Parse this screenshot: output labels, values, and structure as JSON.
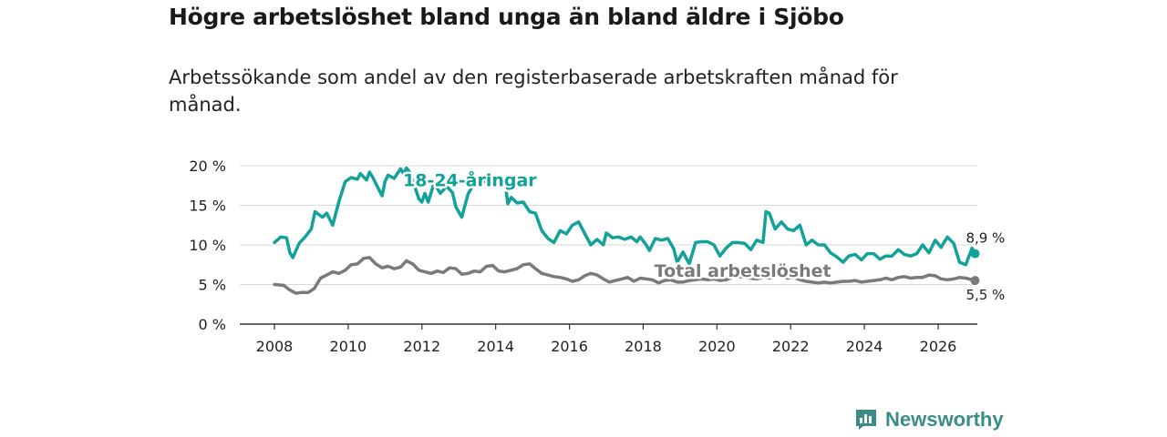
{
  "title": "Högre arbetslöshet bland unga än bland äldre i Sjöbo",
  "subtitle": "Arbetssökande som andel av den registerbaserade arbetskraften månad för månad.",
  "brand": {
    "name": "Newsworthy",
    "icon": "newsworthy-logo-icon",
    "color": "#3a8d86"
  },
  "chart_data": {
    "type": "line",
    "title": "Högre arbetslöshet bland unga än bland äldre i Sjöbo",
    "xlabel": "",
    "ylabel": "",
    "xlim": [
      2007.5,
      2027.0
    ],
    "ylim": [
      0,
      20
    ],
    "x_ticks": [
      {
        "value": 2008,
        "label": "2008"
      },
      {
        "value": 2010,
        "label": "2010"
      },
      {
        "value": 2012,
        "label": "2012"
      },
      {
        "value": 2014,
        "label": "2014"
      },
      {
        "value": 2016,
        "label": "2016"
      },
      {
        "value": 2018,
        "label": "2018"
      },
      {
        "value": 2020,
        "label": "2020"
      },
      {
        "value": 2022,
        "label": "2022"
      },
      {
        "value": 2024,
        "label": "2024"
      },
      {
        "value": 2026,
        "label": "2026"
      }
    ],
    "y_ticks": [
      {
        "value": 0,
        "label": "0 %"
      },
      {
        "value": 5,
        "label": "5 %"
      },
      {
        "value": 10,
        "label": "10 %"
      },
      {
        "value": 15,
        "label": "15 %"
      },
      {
        "value": 20,
        "label": "20 %"
      }
    ],
    "grid": true,
    "series": [
      {
        "name": "18-24-åringar",
        "color": "#12a29a",
        "end_label": "8,9 %",
        "label_anchor": [
          2013.3,
          17.4
        ],
        "points": [
          [
            2008.0,
            10.3
          ],
          [
            2008.17,
            11.0
          ],
          [
            2008.33,
            10.9
          ],
          [
            2008.42,
            9.0
          ],
          [
            2008.5,
            8.4
          ],
          [
            2008.67,
            10.2
          ],
          [
            2008.83,
            11.0
          ],
          [
            2009.0,
            12.0
          ],
          [
            2009.1,
            14.2
          ],
          [
            2009.3,
            13.5
          ],
          [
            2009.42,
            14.0
          ],
          [
            2009.58,
            12.5
          ],
          [
            2009.75,
            15.5
          ],
          [
            2009.92,
            18.0
          ],
          [
            2010.08,
            18.5
          ],
          [
            2010.25,
            18.3
          ],
          [
            2010.33,
            19.0
          ],
          [
            2010.5,
            18.2
          ],
          [
            2010.58,
            19.2
          ],
          [
            2010.67,
            18.5
          ],
          [
            2010.83,
            17.0
          ],
          [
            2010.92,
            16.2
          ],
          [
            2011.0,
            18.0
          ],
          [
            2011.08,
            18.8
          ],
          [
            2011.25,
            18.4
          ],
          [
            2011.42,
            19.6
          ],
          [
            2011.5,
            19.0
          ],
          [
            2011.58,
            19.7
          ],
          [
            2011.67,
            19.2
          ],
          [
            2011.83,
            17.0
          ],
          [
            2011.92,
            15.8
          ],
          [
            2012.0,
            15.4
          ],
          [
            2012.08,
            16.5
          ],
          [
            2012.17,
            15.4
          ],
          [
            2012.33,
            17.8
          ],
          [
            2012.5,
            16.5
          ],
          [
            2012.67,
            17.4
          ],
          [
            2012.83,
            16.6
          ],
          [
            2012.92,
            14.8
          ],
          [
            2013.08,
            13.5
          ],
          [
            2013.25,
            16.4
          ],
          [
            2013.42,
            17.8
          ],
          [
            2013.58,
            18.0
          ],
          [
            2013.75,
            18.0
          ],
          [
            2013.92,
            17.6
          ],
          [
            2014.08,
            17.9
          ],
          [
            2014.25,
            18.1
          ],
          [
            2014.33,
            15.2
          ],
          [
            2014.42,
            16.0
          ],
          [
            2014.58,
            15.3
          ],
          [
            2014.75,
            15.4
          ],
          [
            2014.92,
            14.2
          ],
          [
            2015.08,
            14.0
          ],
          [
            2015.25,
            11.8
          ],
          [
            2015.42,
            10.8
          ],
          [
            2015.58,
            10.3
          ],
          [
            2015.75,
            11.8
          ],
          [
            2015.92,
            11.4
          ],
          [
            2016.08,
            12.5
          ],
          [
            2016.25,
            12.9
          ],
          [
            2016.42,
            11.4
          ],
          [
            2016.58,
            10.0
          ],
          [
            2016.75,
            10.7
          ],
          [
            2016.92,
            10.0
          ],
          [
            2017.0,
            11.5
          ],
          [
            2017.17,
            10.9
          ],
          [
            2017.33,
            11.0
          ],
          [
            2017.5,
            10.7
          ],
          [
            2017.67,
            11.0
          ],
          [
            2017.83,
            10.4
          ],
          [
            2017.92,
            11.0
          ],
          [
            2018.08,
            10.0
          ],
          [
            2018.17,
            9.3
          ],
          [
            2018.33,
            10.8
          ],
          [
            2018.5,
            10.6
          ],
          [
            2018.67,
            10.8
          ],
          [
            2018.83,
            9.5
          ],
          [
            2018.92,
            7.8
          ],
          [
            2019.08,
            9.1
          ],
          [
            2019.25,
            7.6
          ],
          [
            2019.42,
            10.3
          ],
          [
            2019.58,
            10.4
          ],
          [
            2019.75,
            10.4
          ],
          [
            2019.92,
            10.0
          ],
          [
            2020.08,
            8.6
          ],
          [
            2020.25,
            9.6
          ],
          [
            2020.42,
            10.3
          ],
          [
            2020.58,
            10.3
          ],
          [
            2020.75,
            10.2
          ],
          [
            2020.92,
            9.4
          ],
          [
            2021.08,
            10.6
          ],
          [
            2021.25,
            10.3
          ],
          [
            2021.33,
            14.2
          ],
          [
            2021.42,
            14.0
          ],
          [
            2021.58,
            12.0
          ],
          [
            2021.75,
            12.9
          ],
          [
            2021.92,
            12.0
          ],
          [
            2022.08,
            11.8
          ],
          [
            2022.25,
            12.5
          ],
          [
            2022.42,
            10.0
          ],
          [
            2022.58,
            10.6
          ],
          [
            2022.75,
            10.0
          ],
          [
            2022.92,
            10.0
          ],
          [
            2023.08,
            9.0
          ],
          [
            2023.25,
            8.5
          ],
          [
            2023.42,
            7.8
          ],
          [
            2023.58,
            8.6
          ],
          [
            2023.75,
            8.8
          ],
          [
            2023.92,
            8.1
          ],
          [
            2024.08,
            8.9
          ],
          [
            2024.25,
            8.9
          ],
          [
            2024.42,
            8.2
          ],
          [
            2024.58,
            8.6
          ],
          [
            2024.75,
            8.6
          ],
          [
            2024.92,
            9.4
          ],
          [
            2025.08,
            8.8
          ],
          [
            2025.25,
            8.6
          ],
          [
            2025.42,
            8.9
          ],
          [
            2025.58,
            10.0
          ],
          [
            2025.75,
            9.0
          ],
          [
            2025.92,
            10.6
          ],
          [
            2026.08,
            9.7
          ],
          [
            2026.25,
            11.0
          ],
          [
            2026.42,
            10.2
          ],
          [
            2026.58,
            7.8
          ],
          [
            2026.75,
            7.5
          ],
          [
            2026.92,
            9.6
          ],
          [
            2027.0,
            8.9
          ]
        ]
      },
      {
        "name": "Total arbetslöshet",
        "color": "#7a7a7a",
        "end_label": "5,5 %",
        "label_anchor": [
          2020.7,
          6.0
        ],
        "points": [
          [
            2008.0,
            5.0
          ],
          [
            2008.25,
            4.9
          ],
          [
            2008.42,
            4.3
          ],
          [
            2008.58,
            3.9
          ],
          [
            2008.75,
            4.0
          ],
          [
            2008.92,
            4.0
          ],
          [
            2009.08,
            4.5
          ],
          [
            2009.25,
            5.8
          ],
          [
            2009.42,
            6.2
          ],
          [
            2009.58,
            6.6
          ],
          [
            2009.75,
            6.4
          ],
          [
            2009.92,
            6.8
          ],
          [
            2010.08,
            7.5
          ],
          [
            2010.25,
            7.6
          ],
          [
            2010.42,
            8.3
          ],
          [
            2010.58,
            8.4
          ],
          [
            2010.75,
            7.6
          ],
          [
            2010.92,
            7.1
          ],
          [
            2011.08,
            7.3
          ],
          [
            2011.25,
            7.0
          ],
          [
            2011.42,
            7.2
          ],
          [
            2011.58,
            8.0
          ],
          [
            2011.75,
            7.6
          ],
          [
            2011.92,
            6.8
          ],
          [
            2012.08,
            6.6
          ],
          [
            2012.25,
            6.4
          ],
          [
            2012.42,
            6.7
          ],
          [
            2012.58,
            6.5
          ],
          [
            2012.75,
            7.1
          ],
          [
            2012.92,
            7.0
          ],
          [
            2013.08,
            6.3
          ],
          [
            2013.25,
            6.4
          ],
          [
            2013.42,
            6.7
          ],
          [
            2013.58,
            6.6
          ],
          [
            2013.75,
            7.3
          ],
          [
            2013.92,
            7.4
          ],
          [
            2014.08,
            6.7
          ],
          [
            2014.25,
            6.6
          ],
          [
            2014.42,
            6.8
          ],
          [
            2014.58,
            7.0
          ],
          [
            2014.75,
            7.5
          ],
          [
            2014.92,
            7.6
          ],
          [
            2015.08,
            7.0
          ],
          [
            2015.25,
            6.4
          ],
          [
            2015.42,
            6.2
          ],
          [
            2015.58,
            6.0
          ],
          [
            2015.75,
            5.9
          ],
          [
            2015.92,
            5.7
          ],
          [
            2016.08,
            5.4
          ],
          [
            2016.25,
            5.6
          ],
          [
            2016.42,
            6.1
          ],
          [
            2016.58,
            6.4
          ],
          [
            2016.75,
            6.2
          ],
          [
            2016.92,
            5.7
          ],
          [
            2017.08,
            5.3
          ],
          [
            2017.25,
            5.5
          ],
          [
            2017.42,
            5.7
          ],
          [
            2017.58,
            5.9
          ],
          [
            2017.75,
            5.4
          ],
          [
            2017.92,
            5.8
          ],
          [
            2018.08,
            5.7
          ],
          [
            2018.25,
            5.6
          ],
          [
            2018.42,
            5.2
          ],
          [
            2018.58,
            5.5
          ],
          [
            2018.75,
            5.6
          ],
          [
            2018.92,
            5.3
          ],
          [
            2019.08,
            5.3
          ],
          [
            2019.25,
            5.5
          ],
          [
            2019.42,
            5.6
          ],
          [
            2019.58,
            5.7
          ],
          [
            2019.75,
            5.6
          ],
          [
            2019.92,
            5.7
          ],
          [
            2020.08,
            5.5
          ],
          [
            2020.25,
            5.6
          ],
          [
            2020.42,
            5.9
          ],
          [
            2020.58,
            6.0
          ],
          [
            2020.75,
            5.9
          ],
          [
            2020.92,
            5.8
          ],
          [
            2021.08,
            5.7
          ],
          [
            2021.25,
            5.9
          ],
          [
            2021.42,
            5.8
          ],
          [
            2021.58,
            6.1
          ],
          [
            2021.75,
            6.0
          ],
          [
            2021.92,
            5.8
          ],
          [
            2022.08,
            5.9
          ],
          [
            2022.25,
            5.6
          ],
          [
            2022.42,
            5.4
          ],
          [
            2022.58,
            5.3
          ],
          [
            2022.75,
            5.2
          ],
          [
            2022.92,
            5.3
          ],
          [
            2023.08,
            5.2
          ],
          [
            2023.25,
            5.3
          ],
          [
            2023.42,
            5.4
          ],
          [
            2023.58,
            5.4
          ],
          [
            2023.75,
            5.5
          ],
          [
            2023.92,
            5.3
          ],
          [
            2024.08,
            5.4
          ],
          [
            2024.25,
            5.5
          ],
          [
            2024.42,
            5.6
          ],
          [
            2024.58,
            5.8
          ],
          [
            2024.75,
            5.6
          ],
          [
            2024.92,
            5.9
          ],
          [
            2025.08,
            6.0
          ],
          [
            2025.25,
            5.8
          ],
          [
            2025.42,
            5.9
          ],
          [
            2025.58,
            5.9
          ],
          [
            2025.75,
            6.2
          ],
          [
            2025.92,
            6.1
          ],
          [
            2026.08,
            5.7
          ],
          [
            2026.25,
            5.6
          ],
          [
            2026.42,
            5.7
          ],
          [
            2026.58,
            5.9
          ],
          [
            2026.75,
            5.8
          ],
          [
            2026.92,
            5.6
          ],
          [
            2027.0,
            5.5
          ]
        ]
      }
    ]
  }
}
